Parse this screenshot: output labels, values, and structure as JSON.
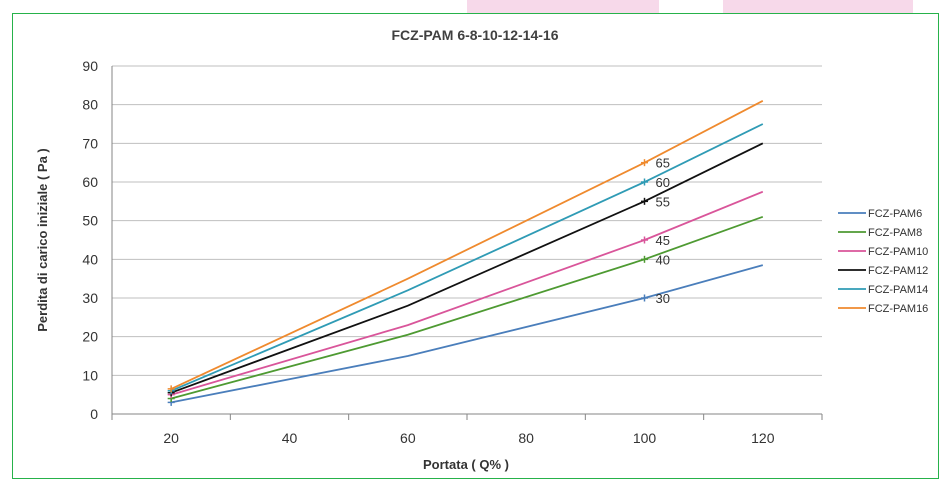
{
  "chart_data": {
    "type": "line",
    "title": "FCZ-PAM 6-8-10-12-14-16",
    "xlabel": "Portata ( Q% )",
    "ylabel": "Perdita di carico iniziale ( Pa )",
    "xlim": [
      10,
      130
    ],
    "ylim": [
      0,
      90
    ],
    "x_ticks": [
      20,
      40,
      60,
      80,
      100,
      120
    ],
    "y_ticks": [
      0,
      10,
      20,
      30,
      40,
      50,
      60,
      70,
      80,
      90
    ],
    "grid": "horizontal",
    "legend_position": "right",
    "series": [
      {
        "name": "FCZ-PAM6",
        "color": "#4a7ebb",
        "x": [
          20,
          60,
          100,
          120
        ],
        "y": [
          3,
          15,
          30,
          38.5
        ]
      },
      {
        "name": "FCZ-PAM8",
        "color": "#4e9a32",
        "x": [
          20,
          60,
          100,
          120
        ],
        "y": [
          4,
          20.5,
          40,
          51
        ]
      },
      {
        "name": "FCZ-PAM10",
        "color": "#d9559a",
        "x": [
          20,
          60,
          100,
          120
        ],
        "y": [
          5,
          23,
          45,
          57.5
        ]
      },
      {
        "name": "FCZ-PAM12",
        "color": "#111111",
        "x": [
          20,
          60,
          100,
          120
        ],
        "y": [
          5.5,
          28,
          55,
          70
        ]
      },
      {
        "name": "FCZ-PAM14",
        "color": "#2f9bb5",
        "x": [
          20,
          60,
          100,
          120
        ],
        "y": [
          6,
          32,
          60,
          75
        ]
      },
      {
        "name": "FCZ-PAM16",
        "color": "#ef8a2e",
        "x": [
          20,
          60,
          100,
          120
        ],
        "y": [
          6.5,
          35,
          65,
          81
        ]
      }
    ],
    "data_labels": [
      {
        "x": 100,
        "y": 30,
        "text": "30"
      },
      {
        "x": 100,
        "y": 40,
        "text": "40"
      },
      {
        "x": 100,
        "y": 45,
        "text": "45"
      },
      {
        "x": 100,
        "y": 55,
        "text": "55"
      },
      {
        "x": 100,
        "y": 60,
        "text": "60"
      },
      {
        "x": 100,
        "y": 65,
        "text": "65"
      }
    ]
  }
}
